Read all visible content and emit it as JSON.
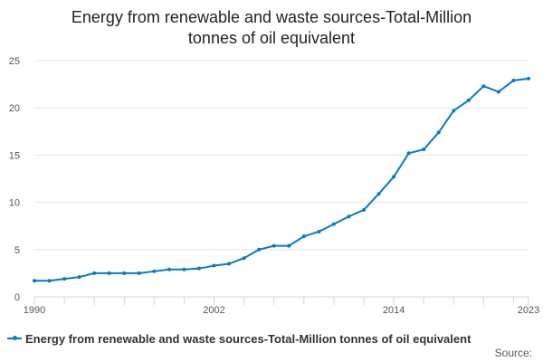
{
  "chart_data": {
    "type": "line",
    "title_lines": [
      "Energy from renewable and waste sources-Total-Million",
      "tonnes of oil equivalent"
    ],
    "xlabel": "",
    "ylabel": "",
    "x": [
      1990,
      1991,
      1992,
      1993,
      1994,
      1995,
      1996,
      1997,
      1998,
      1999,
      2000,
      2001,
      2002,
      2003,
      2004,
      2005,
      2006,
      2007,
      2008,
      2009,
      2010,
      2011,
      2012,
      2013,
      2014,
      2015,
      2016,
      2017,
      2018,
      2019,
      2020,
      2021,
      2022,
      2023
    ],
    "series": [
      {
        "name": "Energy from renewable and waste sources-Total-Million tonnes of oil equivalent",
        "color": "#0a7abf",
        "values": [
          1.7,
          1.7,
          1.9,
          2.1,
          2.5,
          2.5,
          2.5,
          2.5,
          2.7,
          2.9,
          2.9,
          3.0,
          3.3,
          3.5,
          4.1,
          5.0,
          5.4,
          5.4,
          6.4,
          6.9,
          7.7,
          8.5,
          9.2,
          10.9,
          12.7,
          15.2,
          15.6,
          17.4,
          19.7,
          20.8,
          22.3,
          21.7,
          22.9,
          23.1
        ]
      }
    ],
    "xlim": [
      1990,
      2023
    ],
    "ylim": [
      0,
      25
    ],
    "y_ticks": [
      0,
      5,
      10,
      15,
      20,
      25
    ],
    "x_tick_labels": [
      1990,
      2002,
      2014,
      2023
    ],
    "x_minor_ticks": [
      1990,
      1992,
      1994,
      1996,
      1998,
      2000,
      2002,
      2004,
      2006,
      2008,
      2010,
      2012,
      2014,
      2016,
      2018,
      2020,
      2022,
      2023
    ],
    "grid": true,
    "legend_position": "bottom-left"
  },
  "legend": {
    "label": "Energy from renewable and waste sources-Total-Million tonnes of oil equivalent"
  },
  "footer": {
    "source_label": "Source:"
  },
  "colors": {
    "series": "#0a7abf",
    "grid": "#e6e6e6",
    "axis": "#ccd6eb"
  }
}
